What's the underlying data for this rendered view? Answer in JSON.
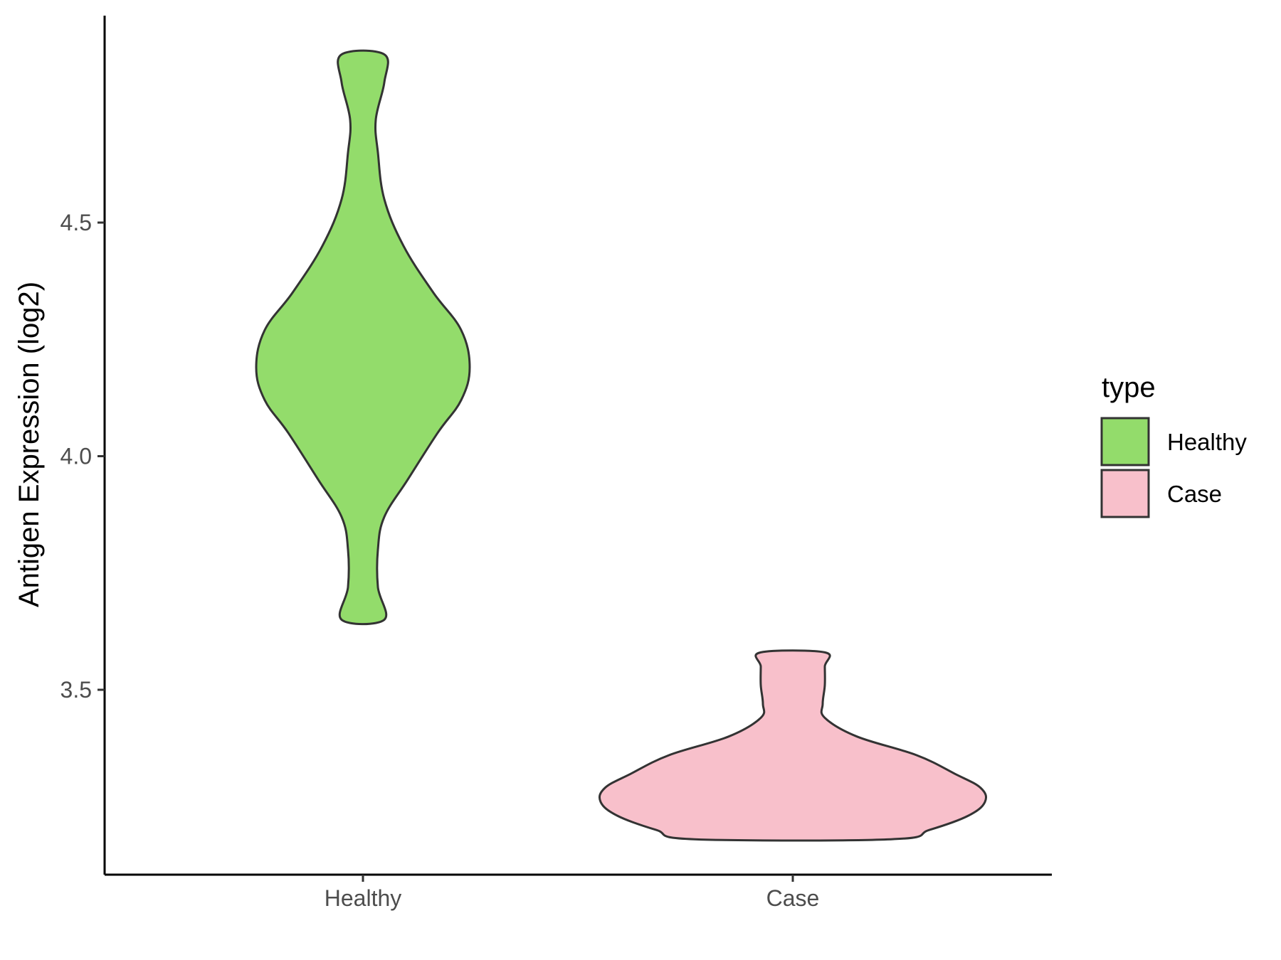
{
  "chart_data": {
    "type": "violin",
    "ylabel": "Antigen Expression (log2)",
    "xlabel": "",
    "categories": [
      "Healthy",
      "Case"
    ],
    "ylim": [
      3.13,
      5.05
    ],
    "yticks": [
      3.5,
      4.0,
      4.5
    ],
    "ytick_labels": [
      "3.5",
      "4.0",
      "4.5"
    ],
    "grid": false,
    "legend": {
      "title": "type",
      "position": "right",
      "entries": [
        {
          "label": "Healthy",
          "color": "#93dc6b"
        },
        {
          "label": "Case",
          "color": "#f8c0cb"
        }
      ]
    },
    "series": [
      {
        "name": "Healthy",
        "color": "#93dc6b",
        "y_min": 3.65,
        "y_max": 4.86,
        "density_profile": [
          [
            3.65,
            0.1
          ],
          [
            3.72,
            0.07
          ],
          [
            3.8,
            0.07
          ],
          [
            3.87,
            0.1
          ],
          [
            3.95,
            0.21
          ],
          [
            4.05,
            0.35
          ],
          [
            4.12,
            0.46
          ],
          [
            4.19,
            0.5
          ],
          [
            4.27,
            0.46
          ],
          [
            4.35,
            0.33
          ],
          [
            4.45,
            0.19
          ],
          [
            4.55,
            0.1
          ],
          [
            4.65,
            0.07
          ],
          [
            4.72,
            0.06
          ],
          [
            4.8,
            0.1
          ],
          [
            4.86,
            0.1
          ]
        ]
      },
      {
        "name": "Case",
        "color": "#f8c0cb",
        "y_min": 3.18,
        "y_max": 3.58,
        "density_profile": [
          [
            3.18,
            0.46
          ],
          [
            3.2,
            0.64
          ],
          [
            3.23,
            0.82
          ],
          [
            3.26,
            0.9
          ],
          [
            3.29,
            0.88
          ],
          [
            3.32,
            0.76
          ],
          [
            3.36,
            0.58
          ],
          [
            3.4,
            0.3
          ],
          [
            3.44,
            0.15
          ],
          [
            3.47,
            0.14
          ],
          [
            3.51,
            0.15
          ],
          [
            3.55,
            0.15
          ],
          [
            3.58,
            0.15
          ]
        ]
      }
    ]
  }
}
